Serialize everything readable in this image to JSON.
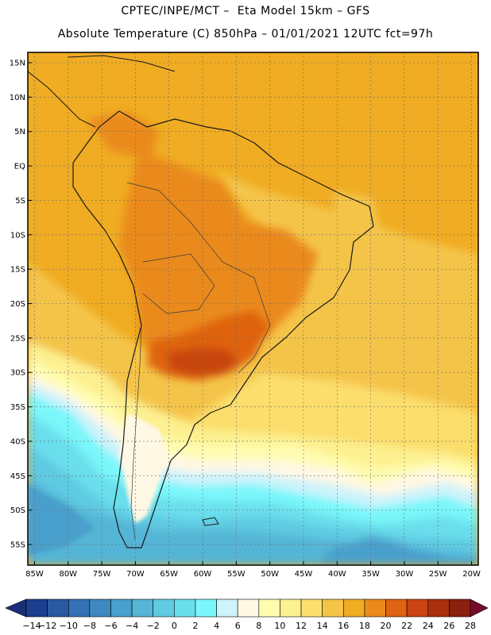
{
  "header": {
    "line1": "CPTEC/INPE/MCT –  Eta Model 15km – GFS",
    "line2": "Absolute Temperature (C) 850hPa – 01/01/2021 12UTC fct=97h"
  },
  "axes": {
    "lat_labels": [
      "15N",
      "10N",
      "5N",
      "EQ",
      "5S",
      "10S",
      "15S",
      "20S",
      "25S",
      "30S",
      "35S",
      "40S",
      "45S",
      "50S",
      "55S"
    ],
    "lat_values": [
      15,
      10,
      5,
      0,
      -5,
      -10,
      -15,
      -20,
      -25,
      -30,
      -35,
      -40,
      -45,
      -50,
      -55
    ],
    "lon_labels": [
      "85W",
      "80W",
      "75W",
      "70W",
      "65W",
      "60W",
      "55W",
      "50W",
      "45W",
      "40W",
      "35W",
      "30W",
      "25W",
      "20W"
    ],
    "lon_values": [
      -85,
      -80,
      -75,
      -70,
      -65,
      -60,
      -55,
      -50,
      -45,
      -40,
      -35,
      -30,
      -25,
      -20
    ],
    "lat_range": [
      -58,
      16.5
    ],
    "lon_range": [
      -86,
      -19
    ]
  },
  "colorbar": {
    "labels": [
      "-14",
      "-12",
      "-10",
      "-8",
      "-6",
      "-4",
      "-2",
      "0",
      "2",
      "4",
      "6",
      "8",
      "10",
      "12",
      "14",
      "16",
      "18",
      "20",
      "22",
      "24",
      "26",
      "28"
    ],
    "colors": [
      "#1c3f8f",
      "#2a5aa2",
      "#3472b4",
      "#3f89c2",
      "#4aa0cc",
      "#55b5d6",
      "#5fcbe2",
      "#6adfec",
      "#7af7fa",
      "#cdf3fb",
      "#fff8e4",
      "#fffcb0",
      "#fdf090",
      "#fbde6c",
      "#f4c448",
      "#f0ac22",
      "#ea8a1a",
      "#df6310",
      "#c84410",
      "#a8300e",
      "#8a2010"
    ],
    "low_end": "#1a2f7a",
    "high_end": "#7a0a2a"
  },
  "theme": {
    "grid": "#6a6a6a",
    "border": "#000000",
    "coast": "#1a1a1a"
  }
}
